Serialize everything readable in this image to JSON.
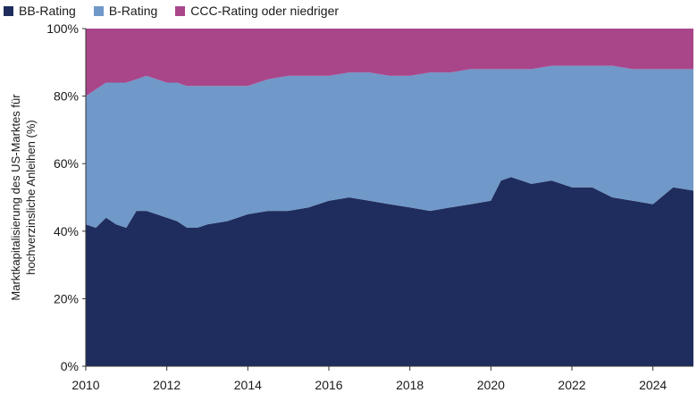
{
  "chart_data": {
    "type": "area",
    "stacked": true,
    "normalized": true,
    "title": "",
    "xlabel": "",
    "ylabel_lines": [
      "Marktkapitalisierung des US-Marktes für",
      "hochverzinsliche Anleihen (%)"
    ],
    "xlim": [
      2010,
      2025
    ],
    "ylim": [
      0,
      100
    ],
    "x_ticks": [
      2010,
      2012,
      2014,
      2016,
      2018,
      2020,
      2022,
      2024
    ],
    "y_ticks": [
      "0%",
      "20%",
      "40%",
      "60%",
      "80%",
      "100%"
    ],
    "y_tick_values": [
      0,
      20,
      40,
      60,
      80,
      100
    ],
    "legend_position": "top-left",
    "x": [
      2010.0,
      2010.25,
      2010.5,
      2010.75,
      2011.0,
      2011.25,
      2011.5,
      2011.75,
      2012.0,
      2012.25,
      2012.5,
      2012.75,
      2013.0,
      2013.5,
      2014.0,
      2014.5,
      2015.0,
      2015.5,
      2016.0,
      2016.5,
      2017.0,
      2017.5,
      2018.0,
      2018.5,
      2019.0,
      2019.5,
      2020.0,
      2020.25,
      2020.5,
      2021.0,
      2021.5,
      2022.0,
      2022.5,
      2023.0,
      2023.5,
      2024.0,
      2024.5,
      2025.0
    ],
    "series": [
      {
        "name": "BB-Rating",
        "color": "#1f2d5e",
        "values": [
          42,
          41,
          44,
          42,
          41,
          46,
          46,
          45,
          44,
          43,
          41,
          41,
          42,
          43,
          45,
          46,
          46,
          47,
          49,
          50,
          49,
          48,
          47,
          46,
          47,
          48,
          49,
          55,
          56,
          54,
          55,
          53,
          53,
          50,
          49,
          48,
          53,
          52
        ]
      },
      {
        "name": "B-Rating",
        "color": "#7098c8",
        "values": [
          38,
          41,
          40,
          42,
          43,
          39,
          40,
          40,
          40,
          41,
          42,
          42,
          41,
          40,
          38,
          39,
          40,
          39,
          37,
          37,
          38,
          38,
          39,
          41,
          40,
          40,
          39,
          33,
          32,
          34,
          34,
          36,
          36,
          39,
          39,
          40,
          35,
          36
        ]
      },
      {
        "name": "CCC-Rating oder niedriger",
        "color": "#a9468a",
        "values": [
          20,
          18,
          16,
          16,
          16,
          15,
          14,
          15,
          16,
          16,
          17,
          17,
          17,
          17,
          17,
          15,
          14,
          14,
          14,
          13,
          13,
          14,
          14,
          13,
          13,
          12,
          12,
          12,
          12,
          12,
          11,
          11,
          11,
          11,
          12,
          12,
          12,
          12
        ]
      }
    ]
  }
}
